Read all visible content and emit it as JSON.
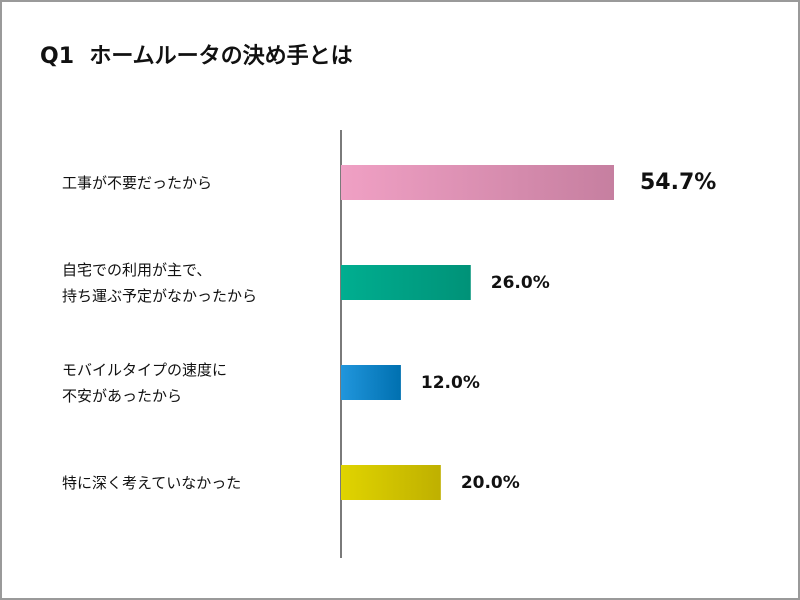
{
  "chart_data": {
    "type": "bar",
    "orientation": "horizontal",
    "title": "Q1  ホームルータの決め手とは",
    "categories": [
      "工事が不要だったから",
      "自宅での利用が主で、\n持ち運ぶ予定がなかったから",
      "モバイルタイプの速度に\n不安があったから",
      "特に深く考えていなかった"
    ],
    "values": [
      54.7,
      26.0,
      12.0,
      20.0
    ],
    "value_labels": [
      "54.7%",
      "26.0%",
      "12.0%",
      "20.0%"
    ],
    "colors": [
      [
        "#f0a0c4",
        "#c67fa0"
      ],
      [
        "#00ae90",
        "#009278"
      ],
      [
        "#2196dc",
        "#0070b0"
      ],
      [
        "#e0d400",
        "#bfb000"
      ]
    ],
    "xlabel": "",
    "ylabel": "",
    "xlim": [
      0,
      100
    ],
    "grid": false
  }
}
